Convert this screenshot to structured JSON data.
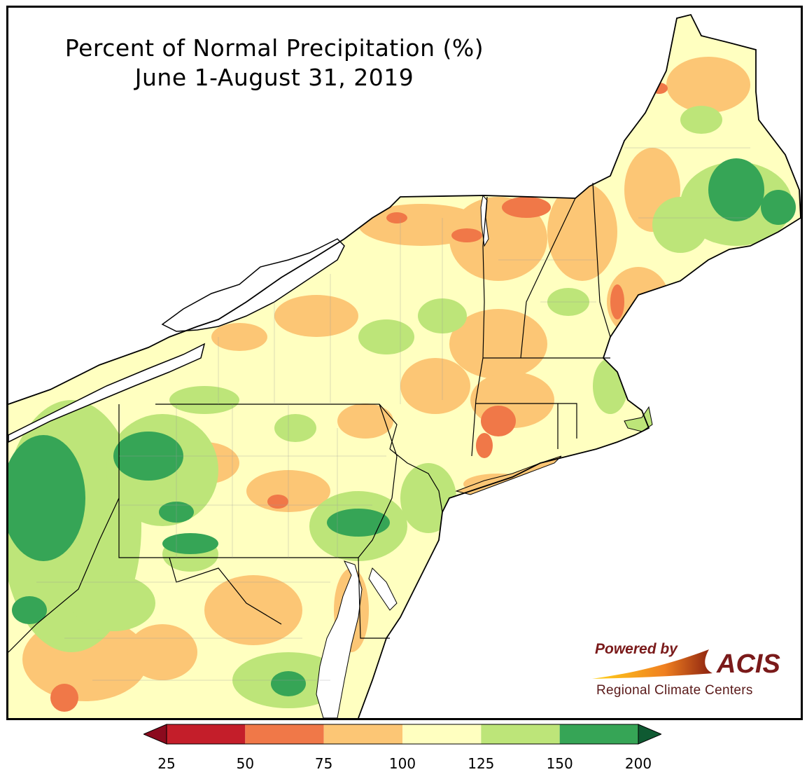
{
  "title": {
    "line1": "Percent of Normal Precipitation (%)",
    "line2": "June 1-August 31, 2019"
  },
  "logo": {
    "powered_by": "Powered by",
    "name": "ACIS",
    "subtitle": "Regional Climate Centers"
  },
  "legend": {
    "ticks": [
      "25",
      "50",
      "75",
      "100",
      "125",
      "150",
      "200"
    ],
    "bins": [
      {
        "range": "25-50",
        "color": "#c41e2a"
      },
      {
        "range": "50-75",
        "color": "#f07848"
      },
      {
        "range": "75-100",
        "color": "#fcc675"
      },
      {
        "range": "100-125",
        "color": "#ffffc0"
      },
      {
        "range": "125-150",
        "color": "#bde579"
      },
      {
        "range": "150-200",
        "color": "#36a556"
      }
    ],
    "under_color": "#8c0a1e",
    "over_color": "#0f5a32"
  },
  "colors": {
    "land_base": "#ffffc0",
    "water": "#ffffff",
    "border": "#000000"
  }
}
